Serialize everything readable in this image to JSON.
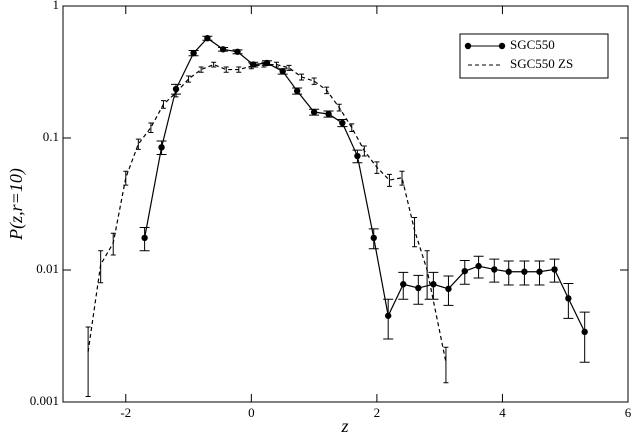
{
  "chart_data": {
    "type": "line",
    "x_label": "z",
    "y_label": "P(z,r=10)",
    "xlim": [
      -3,
      6
    ],
    "xticks": [
      -2,
      0,
      2,
      4,
      6
    ],
    "ylim": [
      0.001,
      1
    ],
    "yticks": [
      0.001,
      0.01,
      0.1,
      1
    ],
    "y_scale": "log",
    "legend_position": "upper right",
    "series": [
      {
        "name": "SGC550",
        "color": "#000000",
        "style": "solid",
        "marker": "circle",
        "x": [
          -1.7,
          -1.43,
          -1.2,
          -0.92,
          -0.7,
          -0.45,
          -0.22,
          0.03,
          0.25,
          0.5,
          0.73,
          1.0,
          1.23,
          1.45,
          1.69,
          1.95,
          2.18,
          2.42,
          2.66,
          2.9,
          3.14,
          3.4,
          3.62,
          3.87,
          4.1,
          4.35,
          4.59,
          4.83,
          5.05,
          5.31
        ],
        "values": [
          0.0175,
          0.085,
          0.235,
          0.44,
          0.57,
          0.47,
          0.45,
          0.36,
          0.37,
          0.32,
          0.227,
          0.157,
          0.152,
          0.13,
          0.073,
          0.0175,
          0.0045,
          0.0078,
          0.0073,
          0.0078,
          0.0072,
          0.0098,
          0.0107,
          0.0101,
          0.0097,
          0.0097,
          0.0097,
          0.0101,
          0.0061,
          0.0034
        ],
        "errors": [
          0.0035,
          0.01,
          0.02,
          0.02,
          0.02,
          0.015,
          0.015,
          0.015,
          0.015,
          0.015,
          0.012,
          0.008,
          0.008,
          0.008,
          0.008,
          0.003,
          0.0015,
          0.0018,
          0.0018,
          0.0018,
          0.0018,
          0.002,
          0.002,
          0.002,
          0.002,
          0.002,
          0.002,
          0.002,
          0.0018,
          0.0014
        ]
      },
      {
        "name": "SGC550 ZS",
        "color": "#000000",
        "style": "dashed",
        "marker": "none",
        "x": [
          -2.6,
          -2.4,
          -2.2,
          -2.0,
          -1.8,
          -1.6,
          -1.4,
          -1.2,
          -1.0,
          -0.8,
          -0.6,
          -0.4,
          -0.2,
          0.0,
          0.2,
          0.4,
          0.6,
          0.8,
          1.0,
          1.2,
          1.4,
          1.6,
          1.8,
          2.0,
          2.2,
          2.4,
          2.6,
          2.8,
          3.1
        ],
        "values": [
          0.0024,
          0.011,
          0.016,
          0.05,
          0.09,
          0.12,
          0.18,
          0.22,
          0.28,
          0.33,
          0.36,
          0.33,
          0.33,
          0.35,
          0.36,
          0.36,
          0.34,
          0.29,
          0.27,
          0.23,
          0.17,
          0.12,
          0.08,
          0.06,
          0.048,
          0.05,
          0.02,
          0.01,
          0.002
        ],
        "errors": [
          0.0013,
          0.003,
          0.003,
          0.006,
          0.008,
          0.01,
          0.012,
          0.015,
          0.015,
          0.015,
          0.015,
          0.015,
          0.015,
          0.015,
          0.015,
          0.015,
          0.015,
          0.015,
          0.015,
          0.013,
          0.01,
          0.008,
          0.007,
          0.006,
          0.005,
          0.006,
          0.005,
          0.004,
          0.0006
        ]
      }
    ]
  }
}
